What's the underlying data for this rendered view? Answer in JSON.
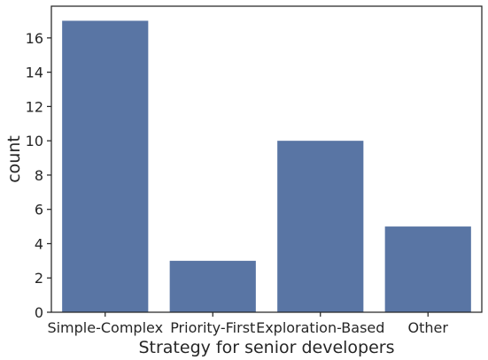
{
  "chart_data": {
    "type": "bar",
    "categories": [
      "Simple-Complex",
      "Priority-First",
      "Exploration-Based",
      "Other"
    ],
    "values": [
      17,
      3,
      10,
      5
    ],
    "title": "",
    "xlabel": "Strategy for senior developers",
    "ylabel": "count",
    "ylim": [
      0,
      17.85
    ],
    "yticks": [
      0,
      2,
      4,
      6,
      8,
      10,
      12,
      14,
      16
    ],
    "grid": false,
    "bar_color": "#5975a4",
    "axis_color": "#262626"
  }
}
